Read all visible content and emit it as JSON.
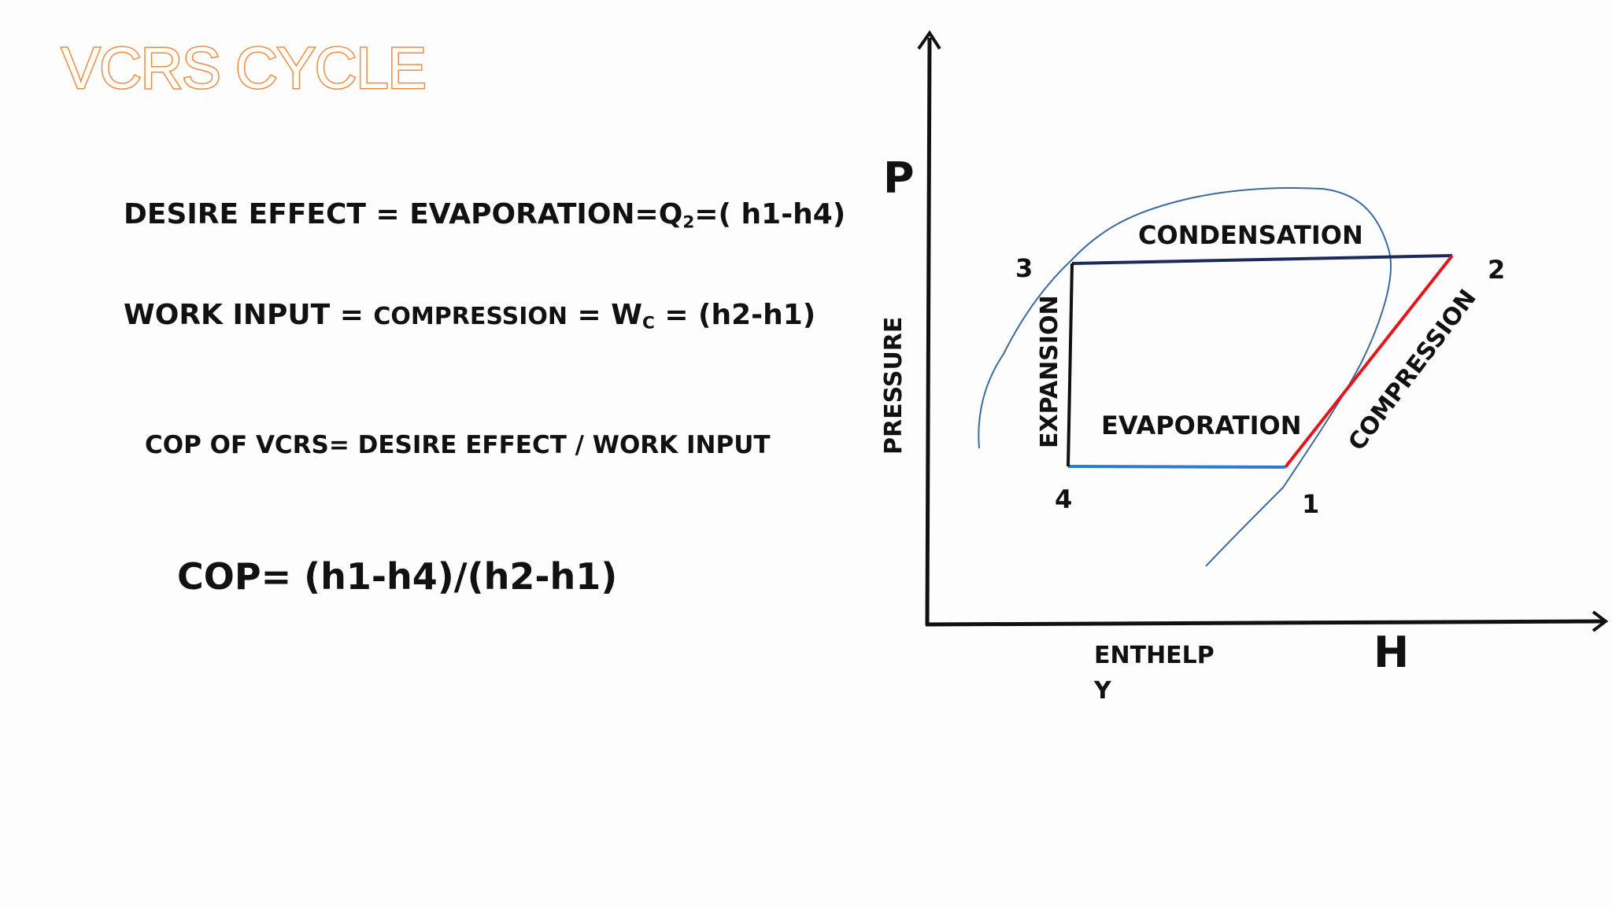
{
  "title": "VCRS CYCLE",
  "equations": {
    "desire_effect": {
      "prefix": "DESIRE EFFECT = EVAPORATION=Q",
      "sub": "2",
      "suffix": "=( h1-h4)"
    },
    "work_input": {
      "prefix": "WORK INPUT = ",
      "mid": "COMPRESSION",
      "eq": " = W",
      "sub": "C",
      "suffix": "  = (h2-h1)"
    },
    "cop_def": "COP OF VCRS= DESIRE EFFECT / WORK INPUT",
    "cop_formula": "COP= (h1-h4)/(h2-h1)"
  },
  "diagram": {
    "y_axis_symbol": "P",
    "y_axis_label": "PRESSURE",
    "x_axis_symbol": "H",
    "x_axis_label_line1": "ENTHELP",
    "x_axis_label_line2": "Y",
    "processes": {
      "condensation": "CONDENSATION",
      "compression": "COMPRESSION",
      "evaporation": "EVAPORATION",
      "expansion": "EXPANSION"
    },
    "points": {
      "p1": "1",
      "p2": "2",
      "p3": "3",
      "p4": "4"
    },
    "colors": {
      "condensation_line": "#1b2a5a",
      "compression_line": "#e3161b",
      "evaporation_line": "#2a7bd0",
      "expansion_line": "#111111",
      "saturation_dome": "#3b6a9c",
      "axes": "#111111",
      "title": "#f08a3c"
    }
  }
}
